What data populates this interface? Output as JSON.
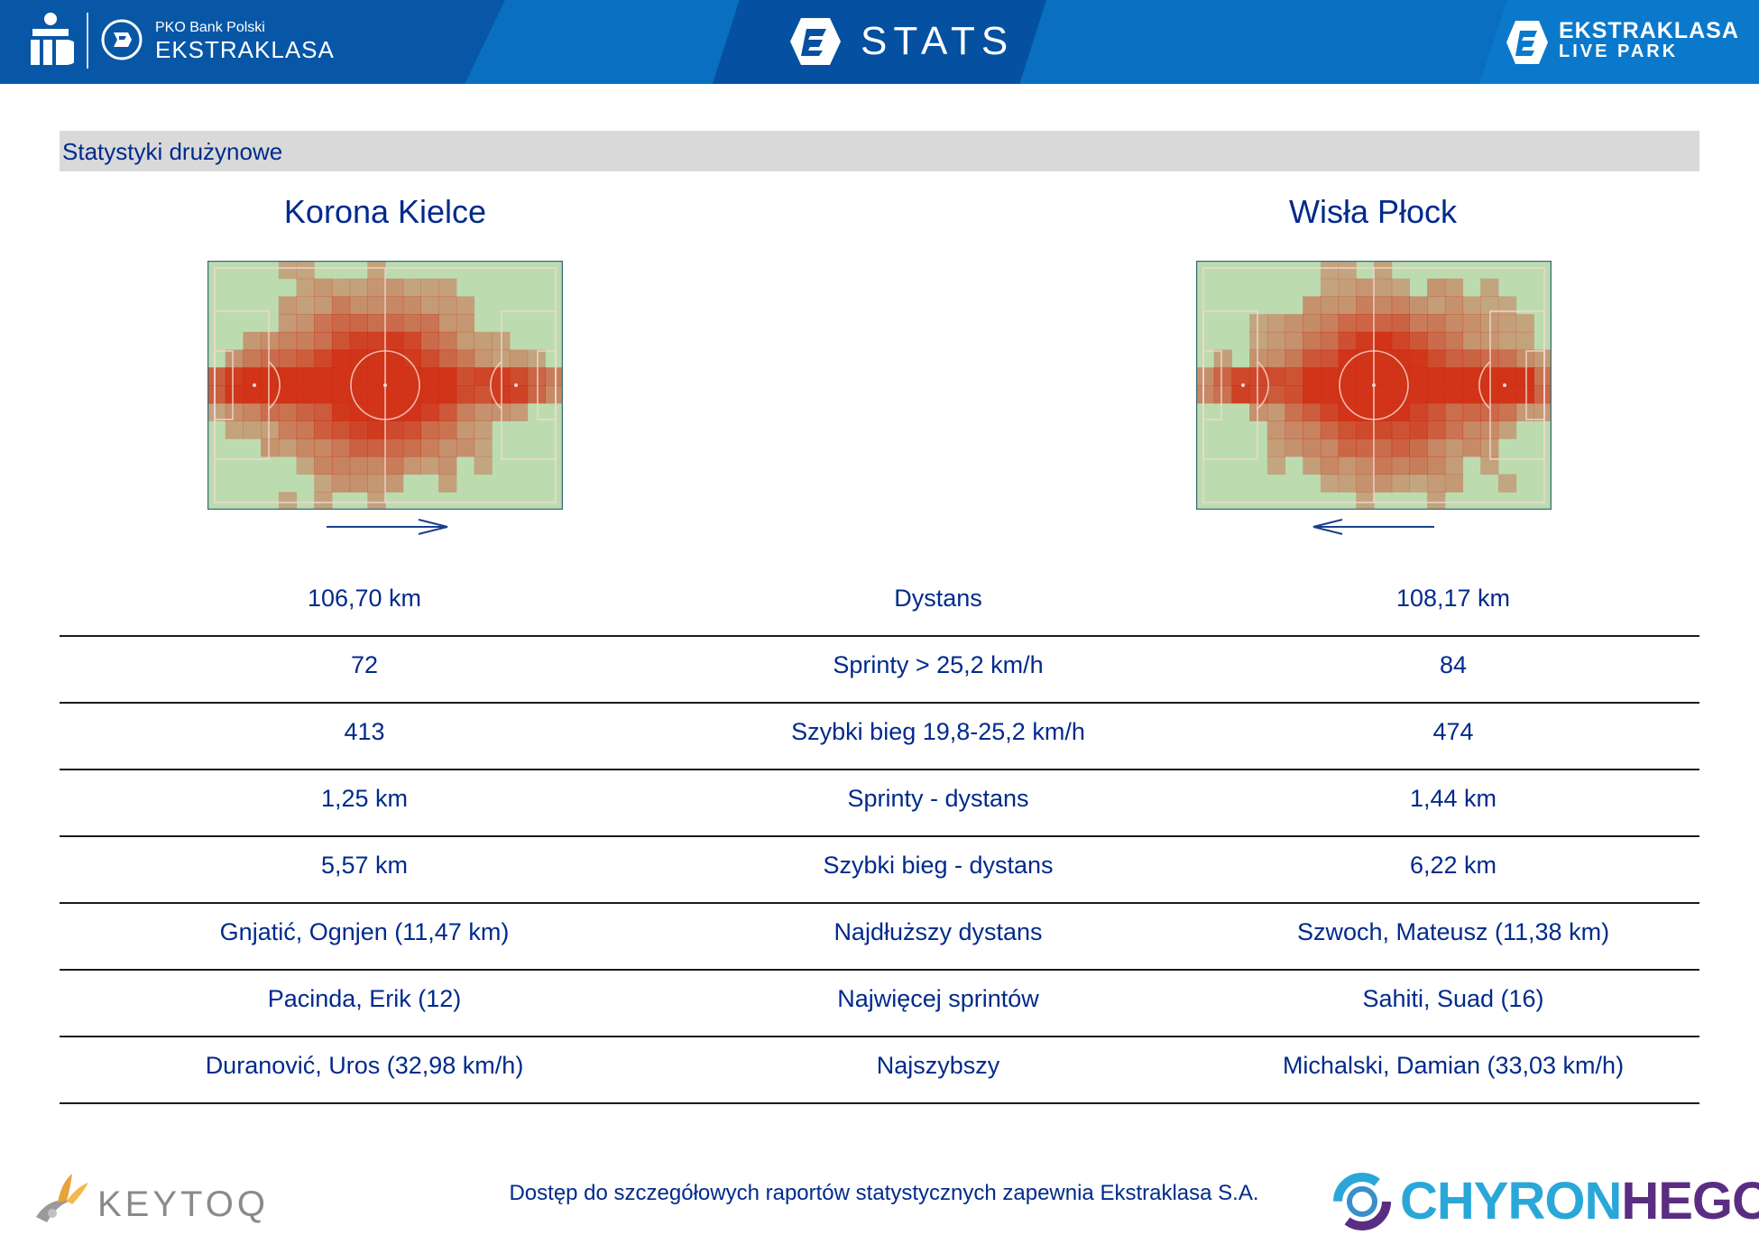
{
  "header": {
    "pko_small": "PKO Bank Polski",
    "league_word": "EKSTRAKLASA",
    "stats_word": "STATS",
    "livepark_line1": "EKSTRAKLASA",
    "livepark_line2": "LIVE PARK",
    "colors": {
      "bar": "#0a6fc0",
      "dark_band": "#0757a6",
      "text": "#ffffff"
    }
  },
  "section_title": "Statystyki drużynowe",
  "teams": {
    "home": {
      "name": "Korona Kielce",
      "attack_direction": "right"
    },
    "away": {
      "name": "Wisła Płock",
      "attack_direction": "left"
    }
  },
  "stats": [
    {
      "label": "Dystans",
      "home": "106,70 km",
      "away": "108,17 km"
    },
    {
      "label": "Sprinty > 25,2 km/h",
      "home": "72",
      "away": "84"
    },
    {
      "label": "Szybki bieg 19,8-25,2 km/h",
      "home": "413",
      "away": "474"
    },
    {
      "label": "Sprinty - dystans",
      "home": "1,25 km",
      "away": "1,44 km"
    },
    {
      "label": "Szybki bieg - dystans",
      "home": "5,57 km",
      "away": "6,22 km"
    },
    {
      "label": "Najdłuższy dystans",
      "home": "Gnjatić, Ognjen (11,47 km)",
      "away": "Szwoch, Mateusz (11,38 km)"
    },
    {
      "label": "Najwięcej sprintów",
      "home": "Pacinda, Erik (12)",
      "away": "Sahiti, Suad (16)"
    },
    {
      "label": "Najszybszy",
      "home": "Duranović, Uros (32,98 km/h)",
      "away": "Michalski, Damian (33,03 km/h)"
    }
  ],
  "footer": {
    "partner_left": "KEYTOQ",
    "note": "Dostęp do szczegółowych raportów statystycznych zapewnia Ekstraklasa S.A.",
    "partner_right_a": "CHYRON",
    "partner_right_b": "HEGO"
  },
  "colors": {
    "text_primary": "#002a8c",
    "section_bar": "#d9d9d9",
    "heat": "#d22a10",
    "pitch": "#bcdcb0"
  }
}
